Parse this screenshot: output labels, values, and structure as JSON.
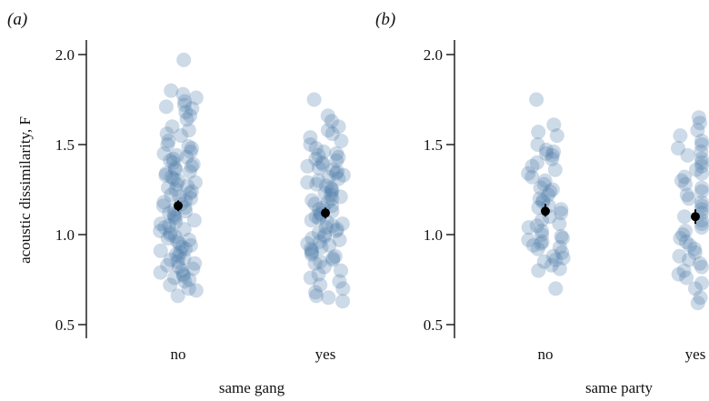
{
  "chart_data": [
    {
      "type": "scatter",
      "panel_label": "(a)",
      "xlabel": "same gang",
      "ylabel": "acoustic dissimilarity, F",
      "ylim": [
        0.5,
        2.0
      ],
      "yticks": [
        0.5,
        1.0,
        1.5,
        2.0
      ],
      "ytick_labels": [
        "0.5",
        "1.0",
        "1.5",
        "2.0"
      ],
      "categories": [
        "no",
        "yes"
      ],
      "point_color": "#4a7aa8",
      "mean_color": "#000000",
      "means": [
        {
          "category": "no",
          "mean": 1.16,
          "ci_low": 1.13,
          "ci_high": 1.19
        },
        {
          "category": "yes",
          "mean": 1.12,
          "ci_low": 1.09,
          "ci_high": 1.15
        }
      ],
      "points": {
        "no": [
          1.97,
          1.8,
          1.78,
          1.76,
          1.74,
          1.72,
          1.71,
          1.7,
          1.68,
          1.66,
          1.64,
          1.6,
          1.58,
          1.56,
          1.55,
          1.52,
          1.5,
          1.49,
          1.48,
          1.46,
          1.45,
          1.44,
          1.43,
          1.42,
          1.41,
          1.4,
          1.39,
          1.38,
          1.37,
          1.36,
          1.35,
          1.34,
          1.33,
          1.32,
          1.31,
          1.3,
          1.29,
          1.28,
          1.27,
          1.26,
          1.25,
          1.24,
          1.23,
          1.22,
          1.21,
          1.2,
          1.19,
          1.18,
          1.17,
          1.16,
          1.15,
          1.14,
          1.13,
          1.12,
          1.11,
          1.1,
          1.09,
          1.08,
          1.07,
          1.06,
          1.05,
          1.04,
          1.03,
          1.02,
          1.01,
          1.0,
          0.99,
          0.98,
          0.97,
          0.96,
          0.95,
          0.94,
          0.93,
          0.92,
          0.91,
          0.9,
          0.89,
          0.88,
          0.87,
          0.86,
          0.85,
          0.84,
          0.83,
          0.82,
          0.81,
          0.8,
          0.79,
          0.78,
          0.77,
          0.76,
          0.75,
          0.74,
          0.72,
          0.7,
          0.69,
          0.66
        ],
        "yes": [
          1.75,
          1.66,
          1.63,
          1.6,
          1.58,
          1.56,
          1.54,
          1.52,
          1.5,
          1.48,
          1.46,
          1.45,
          1.44,
          1.43,
          1.42,
          1.41,
          1.4,
          1.39,
          1.38,
          1.37,
          1.36,
          1.35,
          1.34,
          1.33,
          1.32,
          1.31,
          1.3,
          1.29,
          1.28,
          1.27,
          1.26,
          1.25,
          1.24,
          1.23,
          1.22,
          1.21,
          1.2,
          1.19,
          1.18,
          1.17,
          1.16,
          1.15,
          1.14,
          1.13,
          1.12,
          1.11,
          1.1,
          1.09,
          1.08,
          1.07,
          1.06,
          1.05,
          1.04,
          1.03,
          1.02,
          1.01,
          1.0,
          0.99,
          0.98,
          0.97,
          0.96,
          0.95,
          0.94,
          0.93,
          0.92,
          0.91,
          0.9,
          0.89,
          0.88,
          0.87,
          0.86,
          0.85,
          0.84,
          0.82,
          0.8,
          0.78,
          0.76,
          0.74,
          0.72,
          0.7,
          0.68,
          0.66,
          0.65,
          0.63
        ]
      }
    },
    {
      "type": "scatter",
      "panel_label": "(b)",
      "xlabel": "same party",
      "ylabel": "",
      "ylim": [
        0.5,
        2.0
      ],
      "yticks": [
        0.5,
        1.0,
        1.5,
        2.0
      ],
      "ytick_labels": [
        "0.5",
        "1.0",
        "1.5",
        "2.0"
      ],
      "categories": [
        "no",
        "yes"
      ],
      "point_color": "#4a7aa8",
      "mean_color": "#000000",
      "means": [
        {
          "category": "no",
          "mean": 1.13,
          "ci_low": 1.1,
          "ci_high": 1.17
        },
        {
          "category": "yes",
          "mean": 1.1,
          "ci_low": 1.06,
          "ci_high": 1.14
        }
      ],
      "points": {
        "no": [
          1.75,
          1.61,
          1.57,
          1.55,
          1.5,
          1.47,
          1.46,
          1.45,
          1.44,
          1.42,
          1.4,
          1.38,
          1.36,
          1.34,
          1.32,
          1.3,
          1.28,
          1.26,
          1.25,
          1.24,
          1.22,
          1.2,
          1.19,
          1.18,
          1.16,
          1.15,
          1.14,
          1.12,
          1.1,
          1.08,
          1.06,
          1.05,
          1.04,
          1.02,
          1.0,
          0.99,
          0.98,
          0.97,
          0.96,
          0.95,
          0.94,
          0.93,
          0.92,
          0.9,
          0.88,
          0.87,
          0.86,
          0.85,
          0.83,
          0.81,
          0.8,
          0.7
        ],
        "yes": [
          1.65,
          1.62,
          1.58,
          1.55,
          1.52,
          1.5,
          1.48,
          1.46,
          1.44,
          1.42,
          1.4,
          1.38,
          1.36,
          1.34,
          1.32,
          1.3,
          1.28,
          1.26,
          1.24,
          1.22,
          1.2,
          1.18,
          1.16,
          1.14,
          1.12,
          1.1,
          1.08,
          1.06,
          1.04,
          1.02,
          1.0,
          0.98,
          0.96,
          0.94,
          0.92,
          0.9,
          0.88,
          0.86,
          0.84,
          0.82,
          0.8,
          0.78,
          0.76,
          0.73,
          0.7,
          0.65,
          0.62
        ]
      }
    }
  ]
}
